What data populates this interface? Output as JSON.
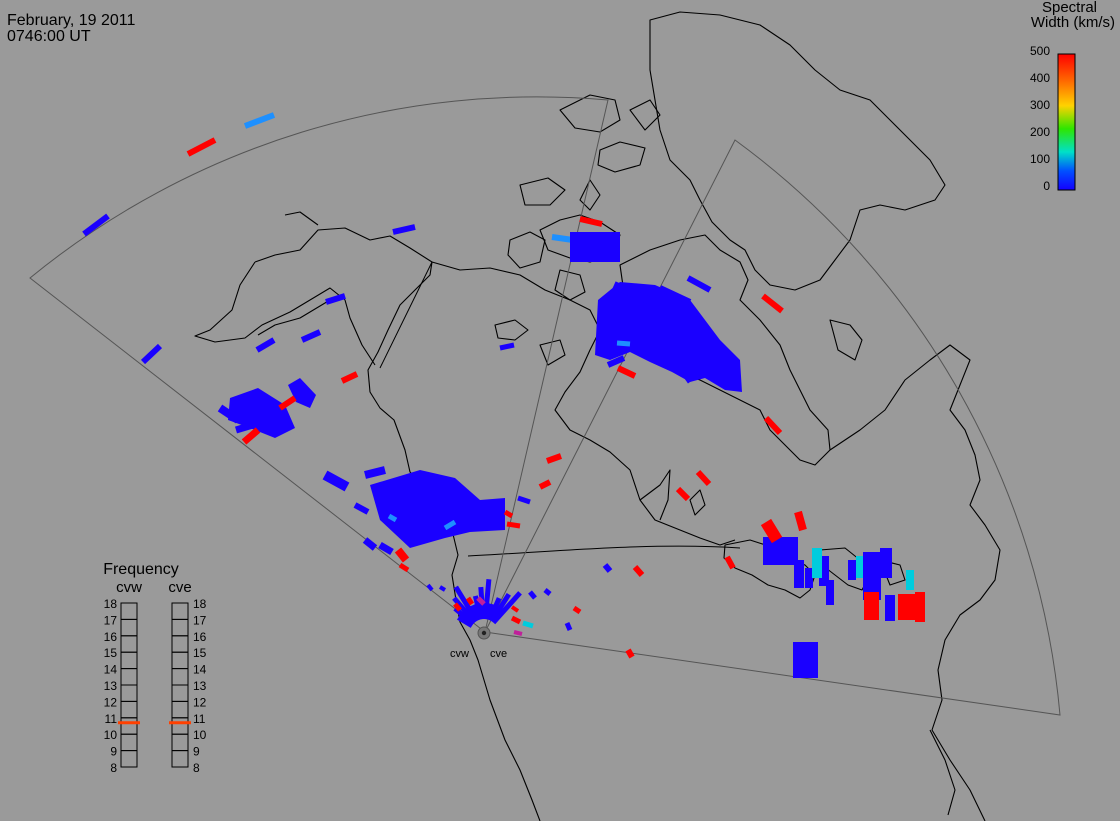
{
  "header": {
    "date": "February, 19 2011",
    "time": "0746:00 UT"
  },
  "colorbar": {
    "title_line1": "Spectral",
    "title_line2": "Width (km/s)",
    "ticks": [
      "500",
      "400",
      "300",
      "200",
      "100",
      "0"
    ],
    "gradient": [
      "#ff0000",
      "#ff6a00",
      "#ffd200",
      "#2ee600",
      "#00e0c8",
      "#0050ff",
      "#1400ff"
    ]
  },
  "frequency": {
    "title": "Frequency",
    "radars": [
      {
        "name": "cvw",
        "current_mhz": 10.7
      },
      {
        "name": "cve",
        "current_mhz": 10.7
      }
    ],
    "scale": [
      "18",
      "17",
      "16",
      "15",
      "14",
      "13",
      "12",
      "11",
      "10",
      "9",
      "8"
    ],
    "marker_color": "#ff4000"
  },
  "map": {
    "radar_labels": [
      "cvw",
      "cve"
    ],
    "background": "#9a9a9a",
    "coastline_color": "#000000",
    "fov_color": "#555555"
  },
  "scatter": {
    "blue": "#1a00ff",
    "red": "#ff0000",
    "cyan": "#00ccdd",
    "skyblue": "#1e90ff",
    "magenta": "#c0209a"
  }
}
